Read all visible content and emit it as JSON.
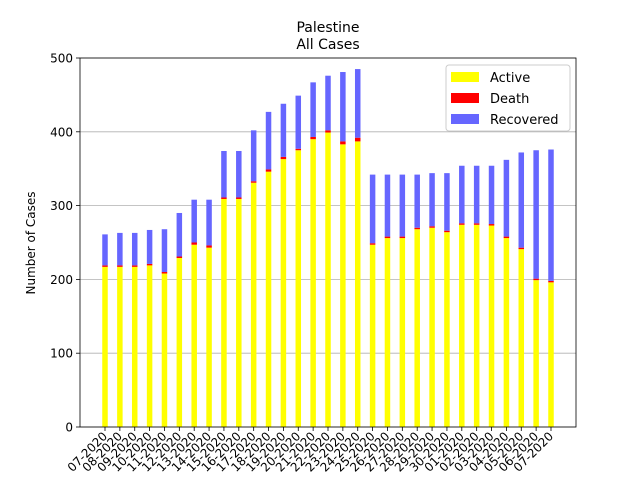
{
  "chart_data": {
    "type": "bar",
    "stacked": true,
    "title": "Palestine",
    "subtitle": "All Cases",
    "xlabel": "",
    "ylabel": "Number of Cases",
    "ylim": [
      0,
      500
    ],
    "yticks": [
      0,
      100,
      200,
      300,
      400,
      500
    ],
    "grid": "y-axis",
    "legend_position": "upper right",
    "categories": [
      "07-2020",
      "08-2020",
      "09-2020",
      "10-2020",
      "11-2020",
      "12-2020",
      "13-2020",
      "14-2020",
      "15-2020",
      "16-2020",
      "17-2020",
      "18-2020",
      "19-2020",
      "20-2020",
      "21-2020",
      "22-2020",
      "23-2020",
      "24-2020",
      "25-2020",
      "26-2020",
      "27-2020",
      "28-2020",
      "29-2020",
      "30-2020",
      "01-2020",
      "02-2020",
      "03-2020",
      "04-2020",
      "05-2020",
      "06-2020",
      "07-2020"
    ],
    "series": [
      {
        "name": "Active",
        "color": "#ffff00",
        "values": [
          217,
          217,
          217,
          219,
          208,
          229,
          247,
          243,
          309,
          309,
          331,
          346,
          363,
          375,
          390,
          399,
          383,
          387,
          247,
          256,
          256,
          268,
          270,
          264,
          274,
          274,
          273,
          256,
          241,
          199,
          196
        ]
      },
      {
        "name": "Death",
        "color": "#ff0000",
        "values": [
          2,
          2,
          2,
          2,
          2,
          2,
          3,
          3,
          2,
          2,
          2,
          3,
          3,
          2,
          3,
          3,
          4,
          5,
          2,
          2,
          2,
          2,
          2,
          2,
          2,
          2,
          2,
          2,
          2,
          2,
          2
        ]
      },
      {
        "name": "Recovered",
        "color": "#6666ff",
        "values": [
          42,
          44,
          44,
          46,
          58,
          59,
          58,
          62,
          63,
          63,
          69,
          78,
          72,
          72,
          74,
          74,
          94,
          93,
          93,
          84,
          84,
          72,
          72,
          78,
          78,
          78,
          79,
          104,
          129,
          174,
          178
        ]
      }
    ]
  }
}
